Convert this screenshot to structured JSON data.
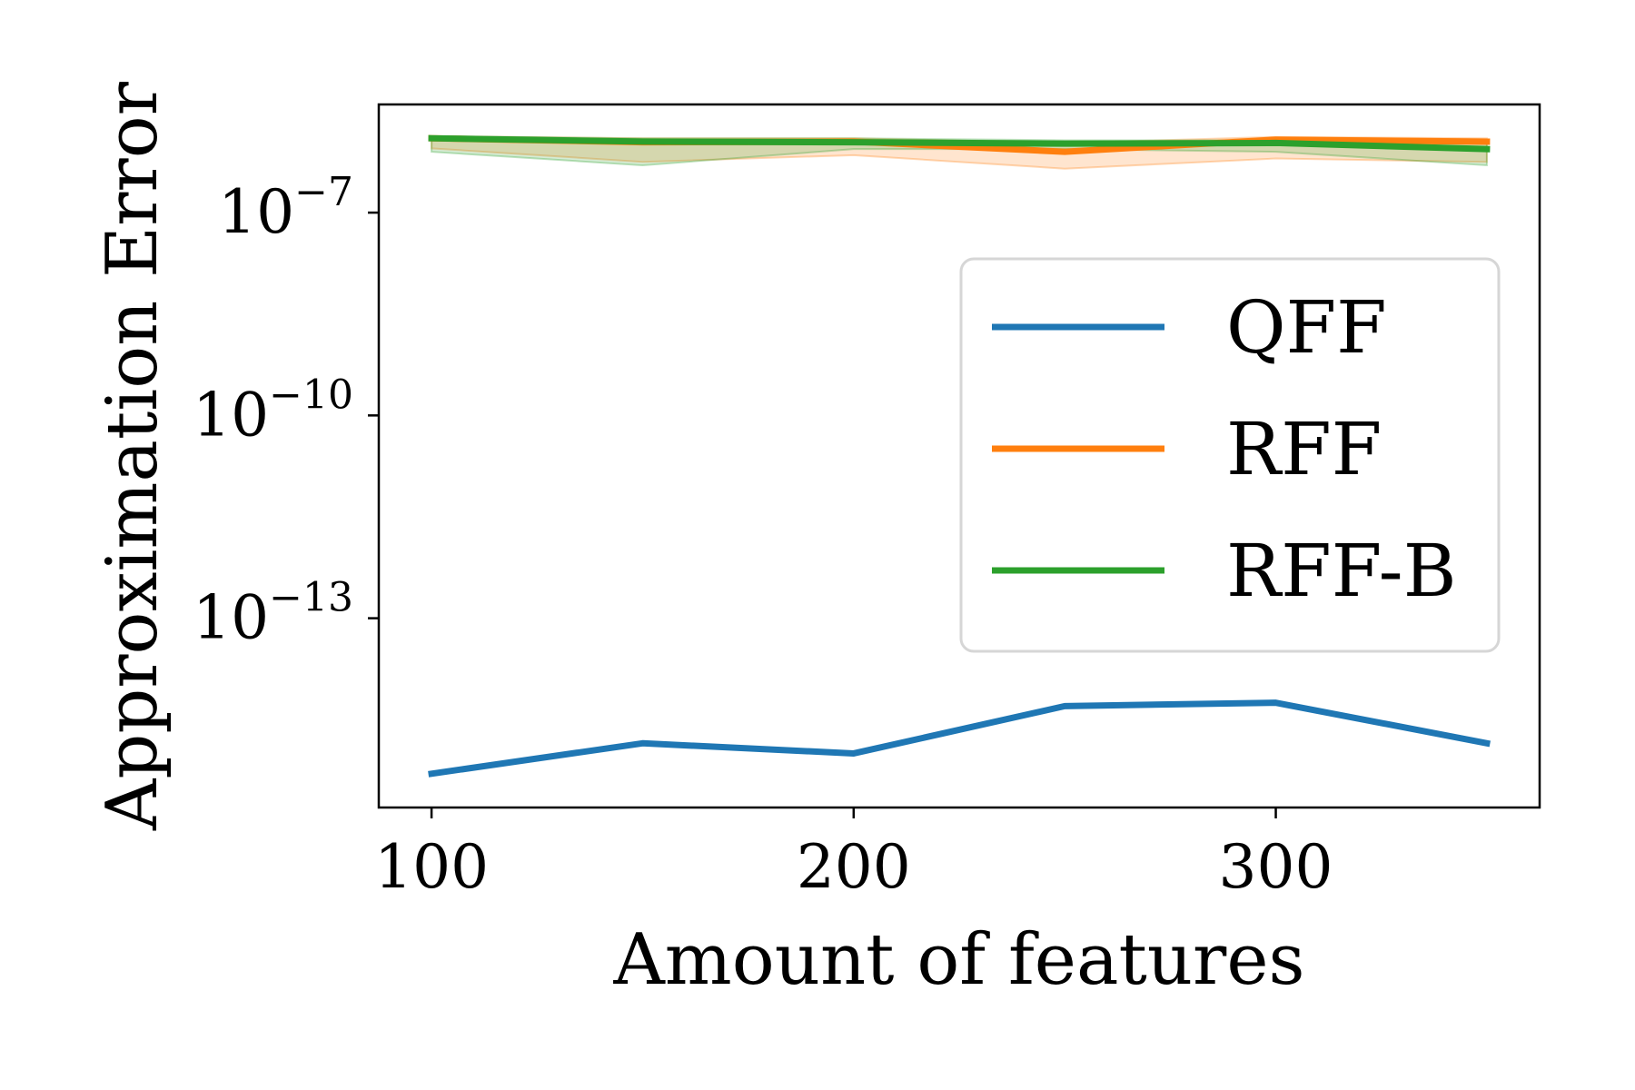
{
  "chart_data": {
    "type": "line",
    "xlabel": "Amount of features",
    "ylabel": "Approximation Error",
    "y_scale": "log",
    "x_range": [
      87.5,
      362.5
    ],
    "y_range_log10": [
      -15.8,
      -5.4
    ],
    "x_ticks": [
      100,
      200,
      300
    ],
    "y_ticks": [
      {
        "base": "10",
        "exponent": "−7",
        "log10": -7
      },
      {
        "base": "10",
        "exponent": "−10",
        "log10": -10
      },
      {
        "base": "10",
        "exponent": "−13",
        "log10": -13
      }
    ],
    "x": [
      100,
      150,
      200,
      250,
      300,
      350
    ],
    "series": [
      {
        "name": "QFF",
        "color": "#1f77b4",
        "log10_values": [
          -15.3,
          -14.85,
          -15.0,
          -14.3,
          -14.25,
          -14.85
        ]
      },
      {
        "name": "RFF",
        "color": "#ff7f0e",
        "log10_values": [
          -5.9,
          -5.96,
          -5.95,
          -6.1,
          -5.92,
          -5.95
        ],
        "band_log10_upper": [
          -5.87,
          -5.9,
          -5.9,
          -5.97,
          -5.88,
          -5.9
        ],
        "band_log10_lower": [
          -6.05,
          -6.25,
          -6.15,
          -6.35,
          -6.2,
          -6.25
        ]
      },
      {
        "name": "RFF-B",
        "color": "#2ca02c",
        "log10_values": [
          -5.9,
          -5.95,
          -5.96,
          -5.98,
          -5.97,
          -6.06
        ],
        "band_log10_upper": [
          -5.87,
          -5.9,
          -5.9,
          -5.93,
          -5.93,
          -5.97
        ],
        "band_log10_lower": [
          -6.1,
          -6.3,
          -6.06,
          -6.06,
          -6.1,
          -6.3
        ]
      }
    ],
    "legend_position": "center-right",
    "grid": false
  }
}
